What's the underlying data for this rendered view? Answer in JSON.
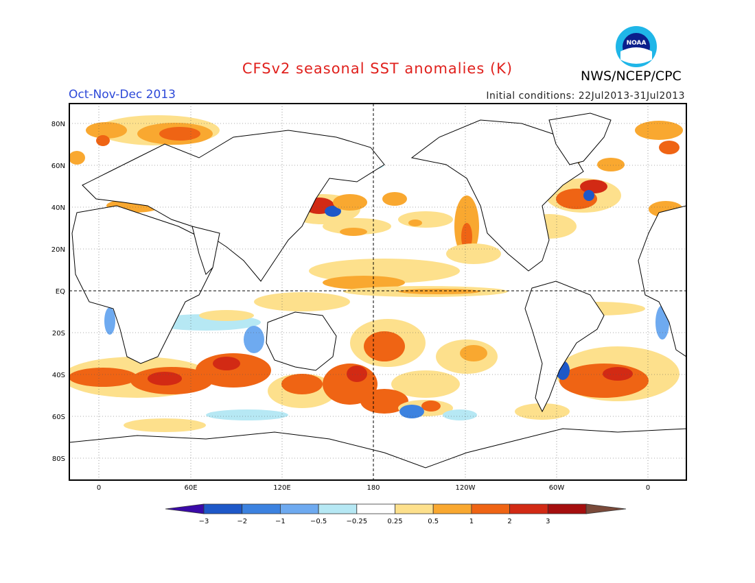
{
  "header": {
    "title": "CFSv2 seasonal SST anomalies (K)",
    "agency": "NWS/NCEP/CPC",
    "period": "Oct-Nov-Dec 2013",
    "initial_conditions": "Initial conditions: 22Jul2013-31Jul2013",
    "logo_text": "NOAA"
  },
  "map": {
    "lat_ticks": [
      "80N",
      "60N",
      "40N",
      "20N",
      "EQ",
      "20S",
      "40S",
      "60S",
      "80S"
    ],
    "lon_ticks": [
      "0",
      "60E",
      "120E",
      "180",
      "120W",
      "60W",
      "0"
    ]
  },
  "colorbar": {
    "labels": [
      "−3",
      "−2",
      "−1",
      "−0.5",
      "−0.25",
      "0.25",
      "0.5",
      "1",
      "2",
      "3"
    ],
    "colors": [
      "#3a0aa8",
      "#1e58c8",
      "#3c82e0",
      "#6eaaf0",
      "#b6e8f4",
      "#ffffff",
      "#fde08c",
      "#f9a830",
      "#ef6414",
      "#d22a14",
      "#a50e0e",
      "#7a4a3a"
    ]
  }
}
